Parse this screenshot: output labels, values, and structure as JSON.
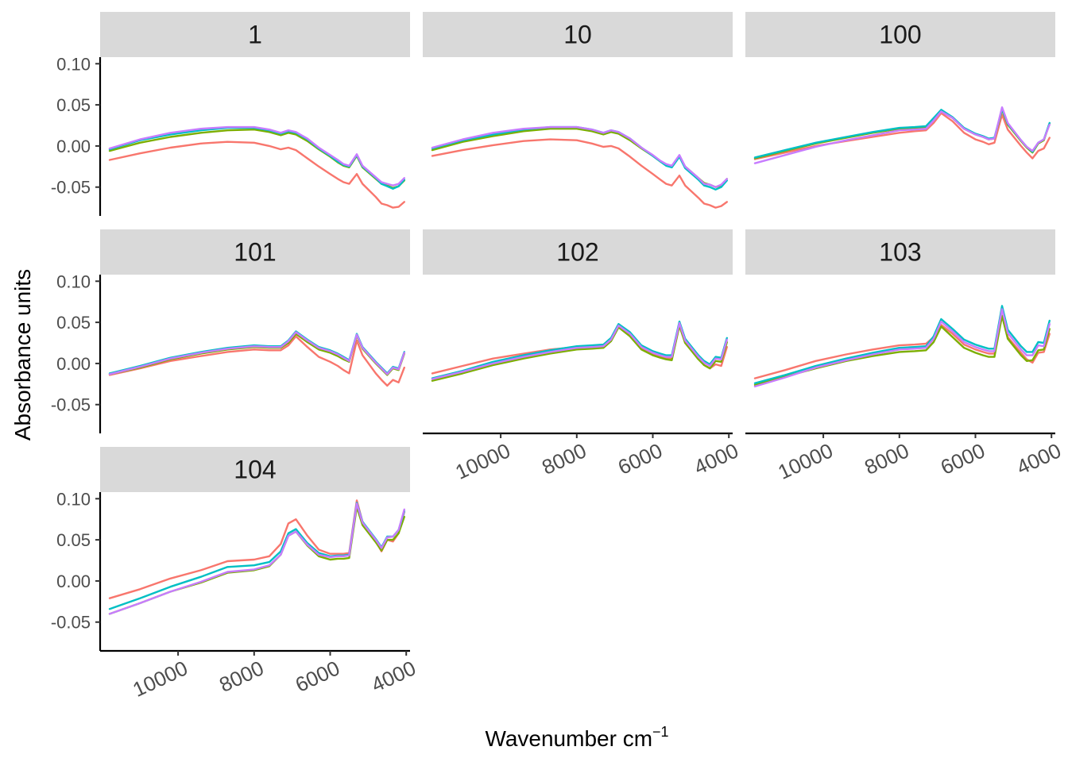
{
  "chart_data": {
    "type": "line",
    "facet": "small-multiples",
    "xlabel": "Wavenumber cm",
    "xlabel_superscript": "−1",
    "ylabel": "Absorbance units",
    "x_reversed": true,
    "xlim": [
      12050,
      3900
    ],
    "ylim": [
      -0.085,
      0.108
    ],
    "x_ticks": [
      10000,
      8000,
      6000,
      4000
    ],
    "x_tick_labels": [
      "10000",
      "8000",
      "6000",
      "4000"
    ],
    "y_ticks": [
      0.1,
      0.05,
      0.0,
      -0.05
    ],
    "y_tick_labels": [
      "0.10",
      "0.05",
      "0.00",
      "-0.05"
    ],
    "grid": false,
    "series_colors": [
      "#F8766D",
      "#7CAE00",
      "#00BFC4",
      "#C77CFF"
    ],
    "x": [
      11800,
      11000,
      10200,
      9400,
      8700,
      8000,
      7600,
      7300,
      7100,
      6900,
      6600,
      6300,
      6000,
      5800,
      5650,
      5500,
      5300,
      5150,
      4800,
      4650,
      4500,
      4350,
      4200,
      4050
    ],
    "panels": [
      {
        "label": "1",
        "series": [
          {
            "values": [
              -0.017,
              -0.009,
              -0.002,
              0.003,
              0.005,
              0.004,
              0.0,
              -0.004,
              -0.002,
              -0.005,
              -0.015,
              -0.025,
              -0.034,
              -0.04,
              -0.044,
              -0.046,
              -0.034,
              -0.046,
              -0.062,
              -0.07,
              -0.072,
              -0.075,
              -0.074,
              -0.068
            ]
          },
          {
            "values": [
              -0.006,
              0.004,
              0.011,
              0.016,
              0.019,
              0.02,
              0.017,
              0.013,
              0.016,
              0.014,
              0.006,
              -0.004,
              -0.013,
              -0.02,
              -0.024,
              -0.026,
              -0.012,
              -0.026,
              -0.04,
              -0.046,
              -0.048,
              -0.051,
              -0.049,
              -0.042
            ]
          },
          {
            "values": [
              -0.004,
              0.007,
              0.014,
              0.019,
              0.022,
              0.022,
              0.019,
              0.015,
              0.018,
              0.016,
              0.008,
              -0.003,
              -0.012,
              -0.019,
              -0.023,
              -0.025,
              -0.011,
              -0.025,
              -0.039,
              -0.046,
              -0.049,
              -0.052,
              -0.049,
              -0.041
            ]
          },
          {
            "values": [
              -0.003,
              0.008,
              0.016,
              0.021,
              0.023,
              0.023,
              0.02,
              0.016,
              0.019,
              0.017,
              0.009,
              -0.002,
              -0.011,
              -0.017,
              -0.022,
              -0.024,
              -0.01,
              -0.024,
              -0.038,
              -0.044,
              -0.046,
              -0.048,
              -0.046,
              -0.039
            ]
          }
        ]
      },
      {
        "label": "10",
        "series": [
          {
            "values": [
              -0.012,
              -0.005,
              0.001,
              0.006,
              0.008,
              0.007,
              0.003,
              -0.001,
              0.0,
              -0.003,
              -0.013,
              -0.024,
              -0.034,
              -0.041,
              -0.046,
              -0.048,
              -0.036,
              -0.048,
              -0.063,
              -0.07,
              -0.072,
              -0.075,
              -0.073,
              -0.068
            ]
          },
          {
            "values": [
              -0.005,
              0.005,
              0.012,
              0.018,
              0.021,
              0.021,
              0.018,
              0.014,
              0.017,
              0.015,
              0.007,
              -0.003,
              -0.012,
              -0.019,
              -0.023,
              -0.025,
              -0.012,
              -0.025,
              -0.039,
              -0.045,
              -0.047,
              -0.05,
              -0.048,
              -0.04
            ]
          },
          {
            "values": [
              -0.003,
              0.007,
              0.014,
              0.02,
              0.023,
              0.023,
              0.02,
              0.016,
              0.019,
              0.017,
              0.009,
              -0.002,
              -0.012,
              -0.019,
              -0.024,
              -0.026,
              -0.013,
              -0.027,
              -0.041,
              -0.048,
              -0.05,
              -0.053,
              -0.05,
              -0.042
            ]
          },
          {
            "values": [
              -0.002,
              0.008,
              0.016,
              0.021,
              0.023,
              0.023,
              0.02,
              0.016,
              0.019,
              0.017,
              0.009,
              -0.002,
              -0.011,
              -0.018,
              -0.022,
              -0.024,
              -0.011,
              -0.025,
              -0.039,
              -0.046,
              -0.047,
              -0.05,
              -0.047,
              -0.04
            ]
          }
        ]
      },
      {
        "label": "100",
        "series": [
          {
            "values": [
              -0.016,
              -0.008,
              0.0,
              0.006,
              0.011,
              0.016,
              0.018,
              0.019,
              0.028,
              0.04,
              0.03,
              0.016,
              0.008,
              0.005,
              0.002,
              0.004,
              0.038,
              0.02,
              0.0,
              -0.008,
              -0.015,
              -0.006,
              -0.003,
              0.01
            ]
          },
          {
            "values": [
              -0.015,
              -0.006,
              0.003,
              0.01,
              0.016,
              0.021,
              0.022,
              0.023,
              0.032,
              0.043,
              0.034,
              0.021,
              0.014,
              0.011,
              0.008,
              0.009,
              0.044,
              0.026,
              0.006,
              -0.002,
              -0.008,
              0.003,
              0.007,
              0.027
            ]
          },
          {
            "values": [
              -0.014,
              -0.005,
              0.004,
              0.011,
              0.017,
              0.022,
              0.023,
              0.024,
              0.034,
              0.044,
              0.035,
              0.022,
              0.015,
              0.012,
              0.009,
              0.01,
              0.045,
              0.027,
              0.007,
              -0.001,
              -0.007,
              0.004,
              0.008,
              0.028
            ]
          },
          {
            "values": [
              -0.021,
              -0.011,
              -0.001,
              0.007,
              0.013,
              0.019,
              0.02,
              0.021,
              0.031,
              0.042,
              0.034,
              0.021,
              0.014,
              0.011,
              0.008,
              0.009,
              0.047,
              0.028,
              0.007,
              -0.001,
              -0.006,
              0.004,
              0.008,
              0.026
            ]
          }
        ]
      },
      {
        "label": "101",
        "series": [
          {
            "values": [
              -0.014,
              -0.006,
              0.003,
              0.009,
              0.014,
              0.017,
              0.016,
              0.016,
              0.022,
              0.033,
              0.02,
              0.008,
              0.002,
              -0.003,
              -0.008,
              -0.012,
              0.028,
              0.01,
              -0.012,
              -0.02,
              -0.027,
              -0.02,
              -0.023,
              -0.005
            ]
          },
          {
            "values": [
              -0.013,
              -0.005,
              0.005,
              0.012,
              0.017,
              0.02,
              0.019,
              0.019,
              0.025,
              0.036,
              0.026,
              0.017,
              0.013,
              0.009,
              0.005,
              0.002,
              0.034,
              0.018,
              0.0,
              -0.007,
              -0.014,
              -0.006,
              -0.008,
              0.012
            ]
          },
          {
            "values": [
              -0.012,
              -0.003,
              0.007,
              0.014,
              0.019,
              0.022,
              0.021,
              0.021,
              0.028,
              0.039,
              0.029,
              0.02,
              0.016,
              0.012,
              0.008,
              0.004,
              0.036,
              0.02,
              0.002,
              -0.005,
              -0.012,
              -0.004,
              -0.006,
              0.014
            ]
          },
          {
            "values": [
              -0.013,
              -0.004,
              0.006,
              0.013,
              0.018,
              0.021,
              0.02,
              0.02,
              0.027,
              0.038,
              0.028,
              0.019,
              0.015,
              0.011,
              0.007,
              0.003,
              0.035,
              0.019,
              0.001,
              -0.006,
              -0.013,
              -0.005,
              -0.007,
              0.013
            ]
          }
        ]
      },
      {
        "label": "102",
        "series": [
          {
            "values": [
              -0.012,
              -0.003,
              0.006,
              0.012,
              0.017,
              0.02,
              0.02,
              0.021,
              0.028,
              0.045,
              0.034,
              0.018,
              0.011,
              0.008,
              0.006,
              0.006,
              0.046,
              0.025,
              0.006,
              -0.002,
              -0.006,
              -0.001,
              -0.003,
              0.02
            ]
          },
          {
            "values": [
              -0.021,
              -0.012,
              -0.002,
              0.006,
              0.012,
              0.017,
              0.018,
              0.019,
              0.027,
              0.044,
              0.033,
              0.017,
              0.01,
              0.007,
              0.005,
              0.004,
              0.046,
              0.025,
              0.005,
              -0.002,
              -0.006,
              0.003,
              0.002,
              0.026
            ]
          },
          {
            "values": [
              -0.018,
              -0.009,
              0.002,
              0.01,
              0.016,
              0.021,
              0.022,
              0.023,
              0.031,
              0.048,
              0.038,
              0.022,
              0.015,
              0.012,
              0.01,
              0.01,
              0.051,
              0.03,
              0.01,
              0.003,
              -0.001,
              0.008,
              0.007,
              0.031
            ]
          },
          {
            "values": [
              -0.019,
              -0.01,
              0.0,
              0.008,
              0.014,
              0.019,
              0.02,
              0.021,
              0.029,
              0.046,
              0.036,
              0.02,
              0.013,
              0.01,
              0.008,
              0.008,
              0.049,
              0.028,
              0.008,
              0.001,
              -0.003,
              0.006,
              0.005,
              0.029
            ]
          }
        ]
      },
      {
        "label": "103",
        "series": [
          {
            "values": [
              -0.018,
              -0.008,
              0.003,
              0.011,
              0.017,
              0.022,
              0.023,
              0.024,
              0.032,
              0.047,
              0.036,
              0.023,
              0.017,
              0.014,
              0.012,
              0.012,
              0.058,
              0.032,
              0.013,
              0.005,
              0.001,
              0.013,
              0.014,
              0.036
            ]
          },
          {
            "values": [
              -0.026,
              -0.016,
              -0.006,
              0.003,
              0.009,
              0.014,
              0.015,
              0.016,
              0.026,
              0.045,
              0.032,
              0.019,
              0.013,
              0.01,
              0.008,
              0.008,
              0.058,
              0.03,
              0.01,
              0.003,
              0.004,
              0.016,
              0.017,
              0.042
            ]
          },
          {
            "values": [
              -0.024,
              -0.014,
              -0.003,
              0.006,
              0.013,
              0.019,
              0.02,
              0.021,
              0.033,
              0.054,
              0.042,
              0.029,
              0.023,
              0.02,
              0.018,
              0.018,
              0.07,
              0.041,
              0.021,
              0.014,
              0.014,
              0.026,
              0.025,
              0.052
            ]
          },
          {
            "values": [
              -0.028,
              -0.017,
              -0.005,
              0.004,
              0.011,
              0.017,
              0.018,
              0.019,
              0.03,
              0.051,
              0.039,
              0.026,
              0.02,
              0.017,
              0.015,
              0.015,
              0.066,
              0.037,
              0.017,
              0.01,
              0.01,
              0.022,
              0.021,
              0.048
            ]
          }
        ]
      },
      {
        "label": "104",
        "series": [
          {
            "values": [
              -0.021,
              -0.01,
              0.003,
              0.013,
              0.024,
              0.026,
              0.03,
              0.045,
              0.07,
              0.075,
              0.055,
              0.038,
              0.033,
              0.033,
              0.033,
              0.034,
              0.098,
              0.072,
              0.048,
              0.036,
              0.05,
              0.048,
              0.058,
              0.084
            ]
          },
          {
            "values": [
              -0.04,
              -0.027,
              -0.013,
              -0.002,
              0.01,
              0.013,
              0.018,
              0.032,
              0.055,
              0.06,
              0.043,
              0.03,
              0.026,
              0.027,
              0.027,
              0.028,
              0.09,
              0.068,
              0.047,
              0.037,
              0.05,
              0.05,
              0.058,
              0.078
            ]
          },
          {
            "values": [
              -0.034,
              -0.021,
              -0.007,
              0.005,
              0.017,
              0.019,
              0.023,
              0.036,
              0.058,
              0.063,
              0.046,
              0.034,
              0.03,
              0.031,
              0.031,
              0.032,
              0.095,
              0.072,
              0.051,
              0.041,
              0.054,
              0.054,
              0.062,
              0.085
            ]
          },
          {
            "values": [
              -0.04,
              -0.027,
              -0.013,
              -0.001,
              0.011,
              0.014,
              0.019,
              0.032,
              0.055,
              0.06,
              0.044,
              0.032,
              0.029,
              0.03,
              0.03,
              0.031,
              0.094,
              0.071,
              0.05,
              0.04,
              0.053,
              0.054,
              0.062,
              0.087
            ]
          }
        ]
      }
    ]
  }
}
